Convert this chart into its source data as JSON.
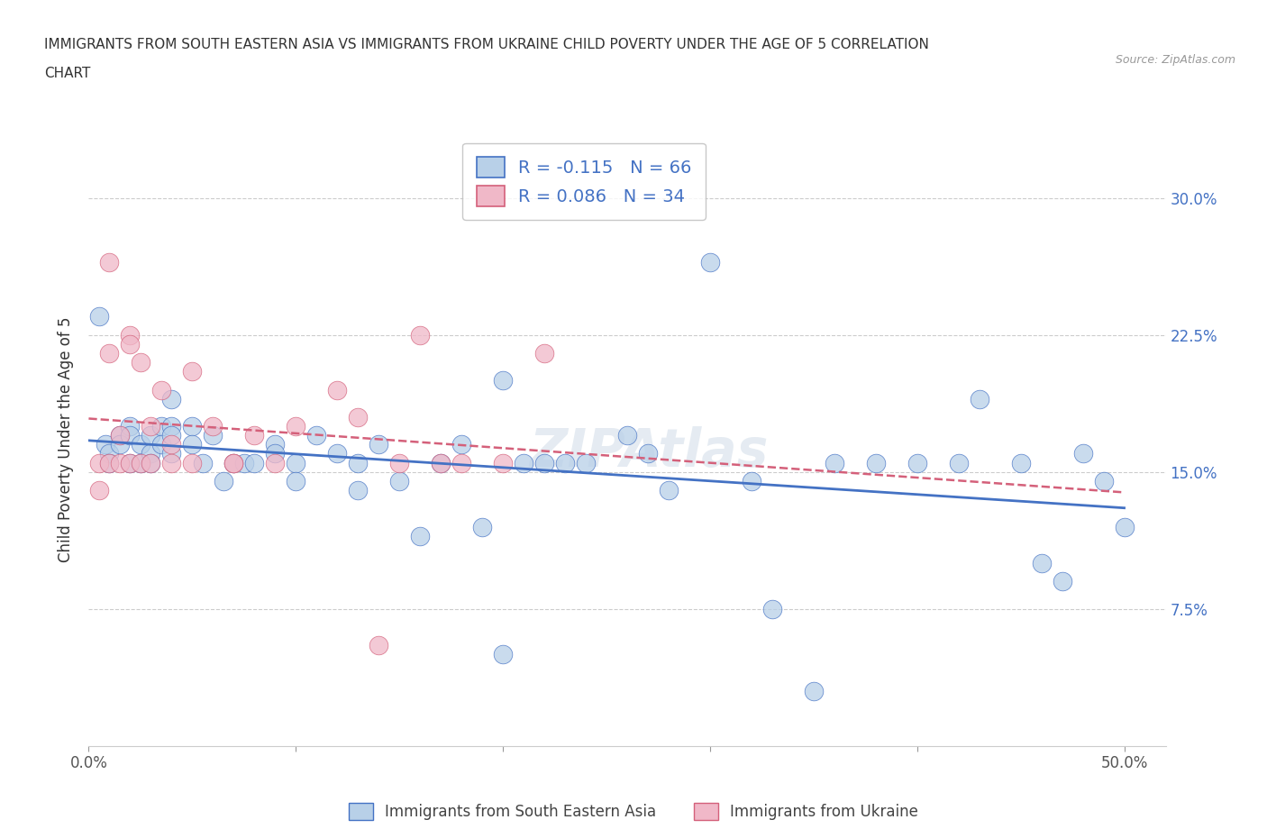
{
  "title_line1": "IMMIGRANTS FROM SOUTH EASTERN ASIA VS IMMIGRANTS FROM UKRAINE CHILD POVERTY UNDER THE AGE OF 5 CORRELATION",
  "title_line2": "CHART",
  "source": "Source: ZipAtlas.com",
  "ylabel": "Child Poverty Under the Age of 5",
  "xlim": [
    0.0,
    0.52
  ],
  "ylim": [
    0.0,
    0.335
  ],
  "yticks": [
    0.075,
    0.15,
    0.225,
    0.3
  ],
  "ytick_labels_right": [
    "7.5%",
    "15.0%",
    "22.5%",
    "30.0%"
  ],
  "xticks": [
    0.0,
    0.1,
    0.2,
    0.3,
    0.4,
    0.5
  ],
  "xtick_labels": [
    "0.0%",
    "",
    "",
    "",
    "",
    "50.0%"
  ],
  "color_blue": "#b8d0e8",
  "color_pink": "#f0b8c8",
  "line_color_blue": "#4472c4",
  "line_color_pink": "#d4607a",
  "R_blue": -0.115,
  "N_blue": 66,
  "R_pink": 0.086,
  "N_pink": 34,
  "legend_label_blue": "Immigrants from South Eastern Asia",
  "legend_label_pink": "Immigrants from Ukraine",
  "blue_x": [
    0.005,
    0.008,
    0.01,
    0.01,
    0.015,
    0.015,
    0.02,
    0.02,
    0.02,
    0.025,
    0.025,
    0.03,
    0.03,
    0.03,
    0.035,
    0.035,
    0.04,
    0.04,
    0.04,
    0.04,
    0.05,
    0.05,
    0.055,
    0.06,
    0.065,
    0.07,
    0.075,
    0.08,
    0.09,
    0.09,
    0.1,
    0.1,
    0.11,
    0.12,
    0.13,
    0.13,
    0.14,
    0.15,
    0.16,
    0.17,
    0.18,
    0.19,
    0.2,
    0.21,
    0.22,
    0.23,
    0.24,
    0.26,
    0.27,
    0.28,
    0.3,
    0.32,
    0.35,
    0.36,
    0.38,
    0.4,
    0.42,
    0.43,
    0.45,
    0.46,
    0.47,
    0.48,
    0.49,
    0.5,
    0.2,
    0.33
  ],
  "blue_y": [
    0.235,
    0.165,
    0.16,
    0.155,
    0.17,
    0.165,
    0.175,
    0.17,
    0.155,
    0.165,
    0.155,
    0.17,
    0.16,
    0.155,
    0.175,
    0.165,
    0.19,
    0.175,
    0.17,
    0.16,
    0.175,
    0.165,
    0.155,
    0.17,
    0.145,
    0.155,
    0.155,
    0.155,
    0.165,
    0.16,
    0.155,
    0.145,
    0.17,
    0.16,
    0.155,
    0.14,
    0.165,
    0.145,
    0.115,
    0.155,
    0.165,
    0.12,
    0.2,
    0.155,
    0.155,
    0.155,
    0.155,
    0.17,
    0.16,
    0.14,
    0.265,
    0.145,
    0.03,
    0.155,
    0.155,
    0.155,
    0.155,
    0.19,
    0.155,
    0.1,
    0.09,
    0.16,
    0.145,
    0.12,
    0.05,
    0.075
  ],
  "pink_x": [
    0.005,
    0.005,
    0.01,
    0.01,
    0.01,
    0.015,
    0.015,
    0.02,
    0.02,
    0.02,
    0.025,
    0.025,
    0.03,
    0.03,
    0.035,
    0.04,
    0.04,
    0.05,
    0.05,
    0.06,
    0.07,
    0.07,
    0.08,
    0.09,
    0.1,
    0.12,
    0.13,
    0.14,
    0.15,
    0.16,
    0.17,
    0.18,
    0.2,
    0.22
  ],
  "pink_y": [
    0.155,
    0.14,
    0.265,
    0.215,
    0.155,
    0.17,
    0.155,
    0.225,
    0.22,
    0.155,
    0.155,
    0.21,
    0.175,
    0.155,
    0.195,
    0.165,
    0.155,
    0.205,
    0.155,
    0.175,
    0.155,
    0.155,
    0.17,
    0.155,
    0.175,
    0.195,
    0.18,
    0.055,
    0.155,
    0.225,
    0.155,
    0.155,
    0.155,
    0.215
  ],
  "watermark": "ZIPAtlas",
  "background_color": "#ffffff"
}
